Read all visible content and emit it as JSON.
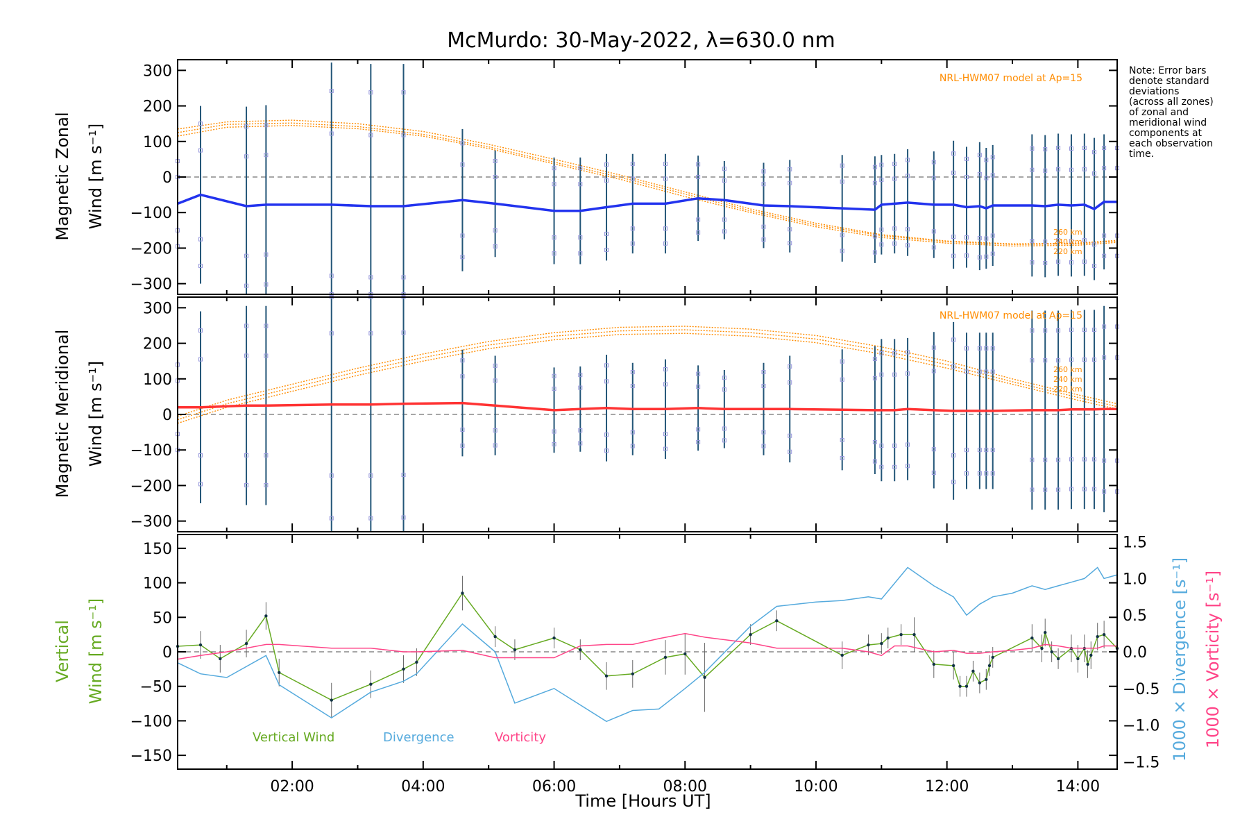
{
  "title": "McMurdo: 30-May-2022, λ=630.0 nm",
  "note": [
    "Note: Error bars",
    "denote standard",
    "deviations",
    "(across all zones)",
    "of zonal and",
    "meridional wind",
    "components at",
    "each observation",
    "time."
  ],
  "colors": {
    "zonal": "#2233ee",
    "meridional": "#ff3333",
    "model": "#ff8c00",
    "zone_points": "#9999dd",
    "error_bars": "#225577",
    "vertical": "#66aa22",
    "divergence": "#55aadd",
    "vorticity": "#ff4488",
    "zero_line": "#888888"
  },
  "chart_data": [
    {
      "type": "line",
      "panel": "zonal",
      "ylabel": [
        "Magnetic Zonal",
        "Wind [m s⁻¹]"
      ],
      "xlim": [
        0.25,
        14.6
      ],
      "ylim": [
        -330,
        330
      ],
      "yticks": [
        -300,
        -200,
        -100,
        0,
        100,
        200,
        300
      ],
      "tick_labels": [
        "−300",
        "−200",
        "−100",
        "0",
        "100",
        "200",
        "300"
      ],
      "model_label": "NRL-HWM07 model at Ap=15",
      "model_altitudes": [
        "260 km",
        "240 km",
        "220 km"
      ],
      "model": [
        {
          "name": "260 km",
          "x": [
            0.25,
            1,
            2,
            3,
            4,
            5,
            6,
            7,
            8,
            9,
            10,
            11,
            12,
            13,
            14,
            14.6
          ],
          "y": [
            125,
            148,
            152,
            142,
            120,
            85,
            42,
            0,
            -48,
            -95,
            -135,
            -165,
            -182,
            -190,
            -188,
            -180
          ]
        },
        {
          "name": "240 km",
          "x": [
            0.25,
            1,
            2,
            3,
            4,
            5,
            6,
            7,
            8,
            9,
            10,
            11,
            12,
            13,
            14,
            14.6
          ],
          "y": [
            135,
            155,
            160,
            150,
            128,
            92,
            50,
            6,
            -42,
            -90,
            -130,
            -162,
            -180,
            -188,
            -186,
            -178
          ]
        },
        {
          "name": "220 km",
          "x": [
            0.25,
            1,
            2,
            3,
            4,
            5,
            6,
            7,
            8,
            9,
            10,
            11,
            12,
            13,
            14,
            14.6
          ],
          "y": [
            115,
            140,
            145,
            136,
            115,
            80,
            37,
            -6,
            -55,
            -100,
            -140,
            -170,
            -186,
            -194,
            -192,
            -184
          ]
        }
      ],
      "series": [
        {
          "x": [
            0.25,
            0.6,
            1.3,
            1.6,
            2.6,
            3.2,
            3.7,
            4.6,
            5.1,
            6.0,
            6.4,
            6.8,
            7.2,
            7.7,
            8.2,
            8.6,
            9.2,
            9.6,
            10.4,
            10.9,
            11.0,
            11.2,
            11.4,
            11.8,
            12.1,
            12.3,
            12.5,
            12.6,
            12.7,
            13.3,
            13.5,
            13.7,
            13.9,
            14.1,
            14.25,
            14.4,
            14.6
          ],
          "y": [
            -75,
            -50,
            -82,
            -78,
            -78,
            -82,
            -82,
            -65,
            -75,
            -95,
            -95,
            -85,
            -75,
            -75,
            -60,
            -65,
            -80,
            -82,
            -88,
            -92,
            -78,
            -75,
            -72,
            -78,
            -78,
            -85,
            -82,
            -88,
            -80,
            -80,
            -82,
            -78,
            -80,
            -78,
            -90,
            -70,
            -70
          ],
          "err": [
            150,
            250,
            280,
            280,
            400,
            400,
            400,
            200,
            150,
            150,
            150,
            150,
            140,
            140,
            120,
            110,
            120,
            130,
            150,
            150,
            140,
            140,
            150,
            150,
            180,
            170,
            180,
            170,
            170,
            200,
            200,
            200,
            200,
            200,
            200,
            190,
            190
          ]
        }
      ]
    },
    {
      "type": "line",
      "panel": "meridional",
      "ylabel": [
        "Magnetic Meridional",
        "Wind [m s⁻¹]"
      ],
      "xlim": [
        0.25,
        14.6
      ],
      "ylim": [
        -330,
        330
      ],
      "yticks": [
        -300,
        -200,
        -100,
        0,
        100,
        200,
        300
      ],
      "tick_labels": [
        "−300",
        "−200",
        "−100",
        "0",
        "100",
        "200",
        "300"
      ],
      "model_label": "NRL-HWM07 model at Ap=15",
      "model_altitudes": [
        "260 km",
        "240 km",
        "220 km"
      ],
      "model": [
        {
          "name": "260 km",
          "x": [
            0.25,
            1,
            2,
            3,
            4,
            5,
            6,
            7,
            8,
            9,
            10,
            11,
            12,
            13,
            14,
            14.6
          ],
          "y": [
            -5,
            40,
            85,
            130,
            170,
            205,
            230,
            245,
            248,
            240,
            222,
            190,
            150,
            100,
            55,
            30
          ]
        },
        {
          "name": "240 km",
          "x": [
            0.25,
            1,
            2,
            3,
            4,
            5,
            6,
            7,
            8,
            9,
            10,
            11,
            12,
            13,
            14,
            14.6
          ],
          "y": [
            -15,
            30,
            75,
            120,
            160,
            195,
            220,
            235,
            238,
            230,
            212,
            180,
            140,
            92,
            48,
            22
          ]
        },
        {
          "name": "220 km",
          "x": [
            0.25,
            1,
            2,
            3,
            4,
            5,
            6,
            7,
            8,
            9,
            10,
            11,
            12,
            13,
            14,
            14.6
          ],
          "y": [
            -25,
            20,
            65,
            110,
            150,
            185,
            210,
            225,
            228,
            220,
            202,
            170,
            130,
            85,
            40,
            15
          ]
        }
      ],
      "series": [
        {
          "x": [
            0.25,
            0.6,
            1.3,
            1.6,
            2.6,
            3.2,
            3.7,
            4.6,
            5.1,
            6.0,
            6.4,
            6.8,
            7.2,
            7.7,
            8.2,
            8.6,
            9.2,
            9.6,
            10.4,
            10.9,
            11.0,
            11.2,
            11.4,
            11.8,
            12.1,
            12.3,
            12.5,
            12.6,
            12.7,
            13.3,
            13.5,
            13.7,
            13.9,
            14.1,
            14.25,
            14.4,
            14.6
          ],
          "y": [
            20,
            20,
            25,
            25,
            28,
            28,
            30,
            32,
            25,
            12,
            15,
            18,
            15,
            15,
            18,
            15,
            15,
            15,
            13,
            12,
            12,
            12,
            15,
            12,
            10,
            10,
            10,
            10,
            10,
            12,
            12,
            12,
            14,
            14,
            14,
            15,
            15
          ],
          "err": [
            150,
            270,
            280,
            280,
            400,
            400,
            400,
            150,
            140,
            120,
            120,
            150,
            130,
            140,
            120,
            110,
            130,
            150,
            170,
            180,
            200,
            200,
            200,
            220,
            250,
            220,
            220,
            220,
            220,
            280,
            280,
            280,
            280,
            280,
            280,
            290,
            290
          ]
        }
      ]
    },
    {
      "type": "line",
      "panel": "vertical",
      "ylabel": [
        "Vertical",
        "Wind [m s⁻¹]"
      ],
      "y2labels": [
        "1000 × Divergence [s⁻¹]",
        "1000 × Vorticity [s⁻¹]"
      ],
      "xlabel": "Time [Hours UT]",
      "xticks": [
        2,
        4,
        6,
        8,
        10,
        12,
        14
      ],
      "xtick_labels": [
        "02:00",
        "04:00",
        "06:00",
        "08:00",
        "10:00",
        "12:00",
        "14:00"
      ],
      "xlim": [
        0.25,
        14.6
      ],
      "ylim": [
        -170,
        170
      ],
      "yticks": [
        -150,
        -100,
        -50,
        0,
        50,
        100,
        150
      ],
      "tick_labels": [
        "−150",
        "−100",
        "−50",
        "0",
        "50",
        "100",
        "150"
      ],
      "y2lim": [
        -1.6,
        1.6
      ],
      "y2ticks": [
        -1.5,
        -1.0,
        -0.5,
        0.0,
        0.5,
        1.0,
        1.5
      ],
      "y2tick_labels": [
        "−1.5",
        "−1.0",
        "−0.5",
        "0.0",
        "0.5",
        "1.0",
        "1.5"
      ],
      "legend": [
        "Vertical Wind",
        "Divergence",
        "Vorticity"
      ],
      "series": [
        {
          "name": "Vertical Wind",
          "x": [
            0.25,
            0.6,
            0.9,
            1.3,
            1.6,
            1.8,
            2.6,
            3.2,
            3.7,
            3.9,
            4.6,
            5.1,
            5.4,
            6.0,
            6.4,
            6.8,
            7.2,
            7.7,
            8.0,
            8.3,
            9.0,
            9.4,
            10.4,
            10.8,
            11.0,
            11.1,
            11.3,
            11.5,
            11.8,
            12.1,
            12.2,
            12.3,
            12.4,
            12.5,
            12.6,
            12.65,
            12.7,
            13.3,
            13.45,
            13.5,
            13.6,
            13.7,
            13.9,
            14.0,
            14.1,
            14.15,
            14.2,
            14.3,
            14.4,
            14.6
          ],
          "y": [
            8,
            10,
            -10,
            12,
            52,
            -30,
            -70,
            -47,
            -25,
            -15,
            85,
            22,
            3,
            20,
            3,
            -35,
            -32,
            -8,
            -3,
            -37,
            25,
            45,
            -5,
            10,
            12,
            20,
            25,
            25,
            -18,
            -20,
            -50,
            -50,
            -28,
            -45,
            -40,
            -20,
            -8,
            20,
            5,
            28,
            0,
            -10,
            5,
            -10,
            5,
            -18,
            -5,
            22,
            25,
            5
          ],
          "err": [
            20,
            20,
            20,
            20,
            20,
            20,
            25,
            20,
            20,
            20,
            25,
            15,
            15,
            15,
            15,
            20,
            20,
            25,
            30,
            50,
            15,
            15,
            20,
            15,
            15,
            15,
            15,
            25,
            20,
            20,
            15,
            15,
            15,
            15,
            15,
            15,
            15,
            20,
            20,
            20,
            15,
            15,
            20,
            20,
            20,
            20,
            20,
            20,
            20,
            20
          ]
        },
        {
          "name": "Divergence",
          "axis": "y2",
          "x": [
            0.25,
            0.6,
            1.0,
            1.6,
            1.8,
            2.6,
            3.2,
            3.7,
            3.9,
            4.6,
            5.1,
            5.4,
            6.0,
            6.8,
            7.2,
            7.6,
            8.0,
            8.3,
            9.0,
            9.4,
            10.0,
            10.4,
            10.8,
            11.0,
            11.4,
            11.8,
            12.1,
            12.3,
            12.5,
            12.7,
            13.0,
            13.3,
            13.5,
            13.7,
            13.9,
            14.1,
            14.3,
            14.4,
            14.6
          ],
          "y": [
            -0.15,
            -0.3,
            -0.35,
            -0.05,
            -0.45,
            -0.9,
            -0.55,
            -0.4,
            -0.3,
            0.38,
            0.0,
            -0.7,
            -0.5,
            -0.95,
            -0.8,
            -0.78,
            -0.5,
            -0.28,
            0.35,
            0.62,
            0.68,
            0.7,
            0.75,
            0.72,
            1.15,
            0.9,
            0.75,
            0.5,
            0.65,
            0.75,
            0.8,
            0.9,
            0.85,
            0.9,
            0.95,
            1.0,
            1.15,
            1.0,
            1.05
          ]
        },
        {
          "name": "Vorticity",
          "axis": "y2",
          "x": [
            0.25,
            0.6,
            1.0,
            1.6,
            1.8,
            2.6,
            3.2,
            3.7,
            3.9,
            4.6,
            5.1,
            5.4,
            6.0,
            6.4,
            6.8,
            7.2,
            7.6,
            8.0,
            8.3,
            9.0,
            9.4,
            10.0,
            10.4,
            10.8,
            11.0,
            11.2,
            11.4,
            11.8,
            12.1,
            12.3,
            12.5,
            12.7,
            13.0,
            13.3,
            13.5,
            13.7,
            13.9,
            14.1,
            14.3,
            14.4,
            14.6
          ],
          "y": [
            -0.1,
            -0.05,
            0.0,
            0.1,
            0.1,
            0.05,
            0.05,
            0.0,
            0.0,
            0.02,
            -0.08,
            -0.08,
            -0.08,
            0.08,
            0.1,
            0.1,
            0.18,
            0.25,
            0.2,
            0.12,
            0.05,
            0.05,
            0.05,
            0.0,
            -0.05,
            0.08,
            0.08,
            0.0,
            0.02,
            -0.02,
            -0.02,
            0.0,
            0.02,
            0.05,
            0.1,
            0.08,
            0.05,
            0.05,
            0.05,
            0.08,
            0.08
          ]
        }
      ]
    }
  ]
}
